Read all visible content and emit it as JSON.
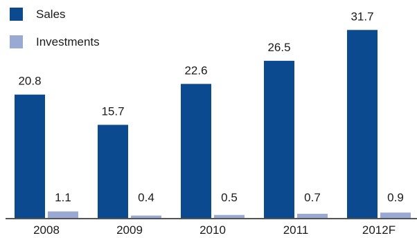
{
  "chart_data": {
    "type": "bar",
    "categories": [
      "2008",
      "2009",
      "2010",
      "2011",
      "2012F"
    ],
    "series": [
      {
        "name": "Sales",
        "color": "#0b4a8f",
        "values": [
          20.8,
          15.7,
          22.6,
          26.5,
          31.7
        ],
        "labels": [
          "20.8",
          "15.7",
          "22.6",
          "26.5",
          "31.7"
        ]
      },
      {
        "name": "Investments",
        "color": "#9aa8d4",
        "values": [
          1.1,
          0.4,
          0.5,
          0.7,
          0.9
        ],
        "labels": [
          "1.1",
          "0.4",
          "0.5",
          "0.7",
          "0.9"
        ]
      }
    ],
    "title": "",
    "xlabel": "",
    "ylabel": "",
    "ylim": [
      0,
      35
    ],
    "grid": false,
    "legend": "top-left",
    "axis_color": "#1a1a1a"
  }
}
